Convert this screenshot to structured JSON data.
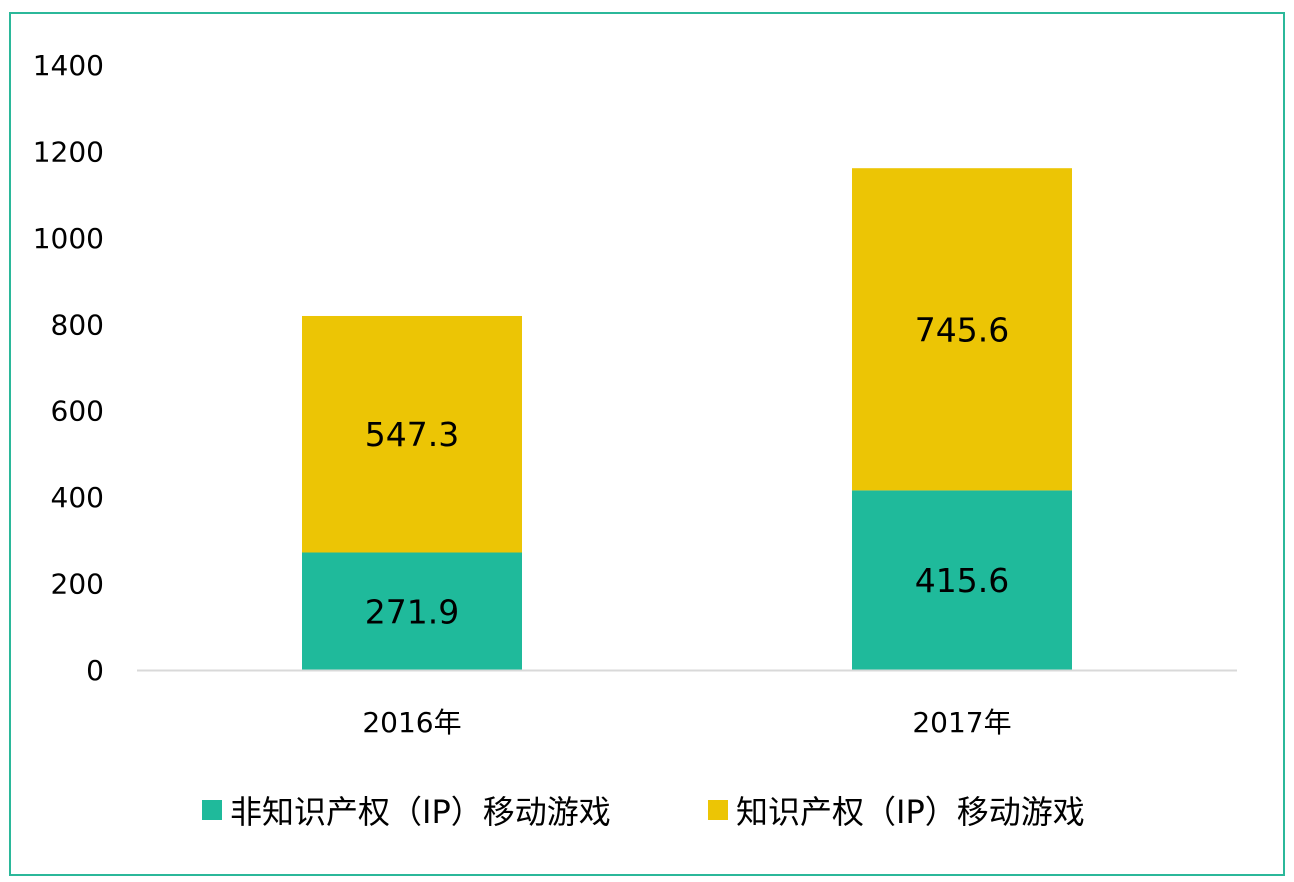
{
  "chart_data": {
    "type": "bar",
    "stacked": true,
    "categories": [
      "2016年",
      "2017年"
    ],
    "series": [
      {
        "name": "非知识产权（IP）移动游戏",
        "values": [
          271.9,
          415.6
        ],
        "color": "#1fba9b"
      },
      {
        "name": "知识产权（IP）移动游戏",
        "values": [
          547.3,
          745.6
        ],
        "color": "#ecc505"
      }
    ],
    "ylim": [
      0,
      1400
    ],
    "yticks": [
      0,
      200,
      400,
      600,
      800,
      1000,
      1200,
      1400
    ],
    "grid": false,
    "legend": "bottom",
    "title": "",
    "xlabel": "",
    "ylabel": ""
  },
  "colors": {
    "frame": "#2bb89a",
    "axis": "#d9d9d9"
  }
}
